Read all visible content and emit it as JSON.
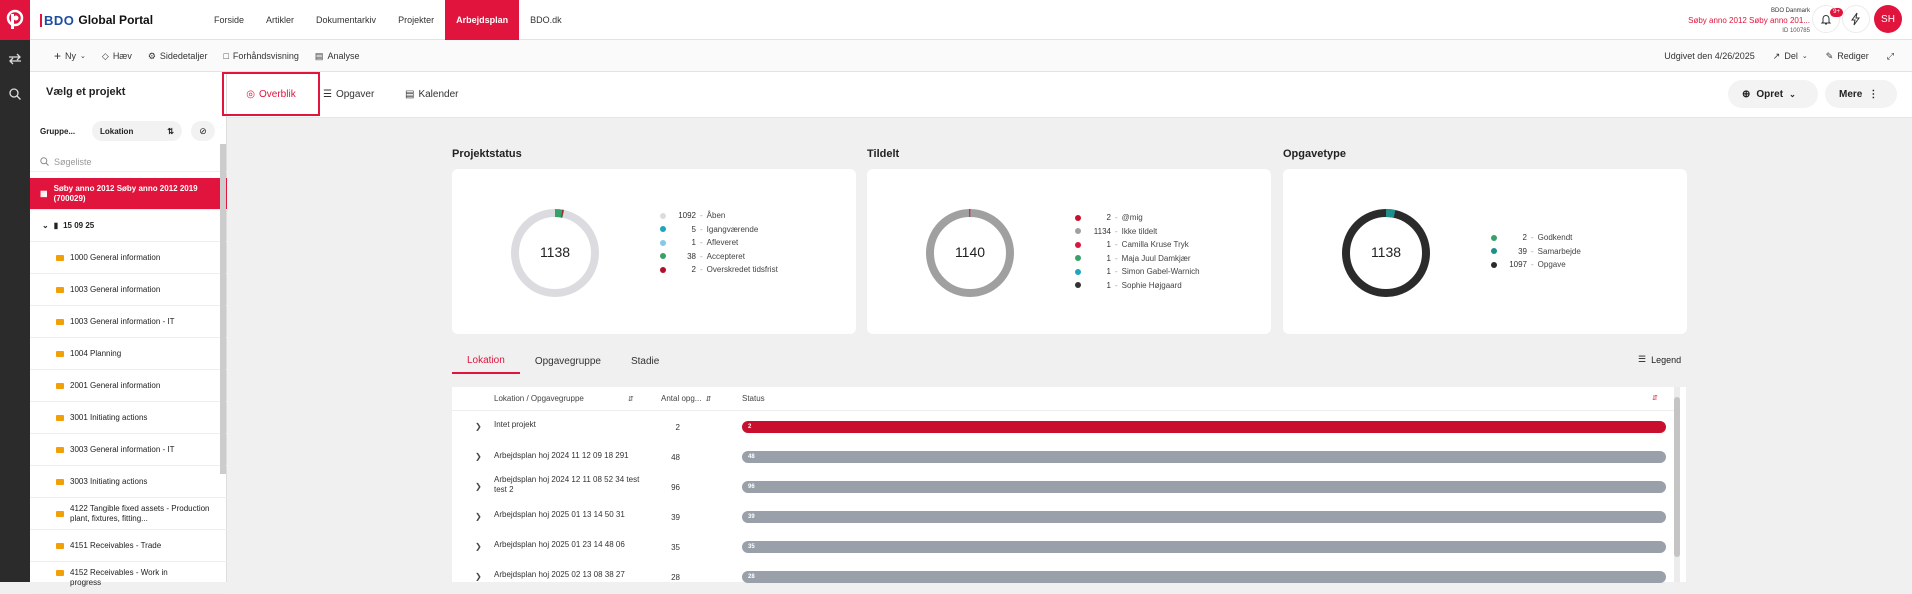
{
  "brand": {
    "logo_text": "BDO",
    "name": "Global Portal"
  },
  "nav": [
    "Forside",
    "Artikler",
    "Dokumentarkiv",
    "Projekter",
    "Arbejdsplan",
    "BDO.dk"
  ],
  "nav_active": "Arbejdsplan",
  "user_info": {
    "org": "BDO Danmark",
    "project": "Søby anno 2012 Søby anno 201...",
    "id": "ID 100785"
  },
  "notifications_badge": "9+",
  "avatar_initials": "SH",
  "cmdbar": {
    "new": "Ny",
    "lift": "Hæv",
    "details": "Sidedetaljer",
    "preview": "Forhåndsvisning",
    "analysis": "Analyse",
    "published": "Udgivet den 4/26/2025",
    "share": "Del",
    "edit": "Rediger"
  },
  "left_panel": {
    "title": "Vælg et projekt",
    "group_label": "Gruppe...",
    "location_label": "Lokation",
    "search_placeholder": "Søgeliste",
    "selected_project": "Søby anno 2012 Søby anno 2012 2019 (700029)",
    "group_node": "15 09 25",
    "items": [
      "1000 General information",
      "1003 General information",
      "1003 General information - IT",
      "1004 Planning",
      "2001 General information",
      "3001 Initiating actions",
      "3003 General information - IT",
      "3003 Initiating actions",
      "4122 Tangible fixed assets - Production plant, fixtures, fitting...",
      "4151 Receivables - Trade",
      "4152 Receivables - Work in progress"
    ]
  },
  "tabs": {
    "overview": "Overblik",
    "tasks": "Opgaver",
    "calendar": "Kalender",
    "create": "Opret",
    "more": "Mere"
  },
  "cards": [
    {
      "title": "Projektstatus",
      "total": "1138",
      "legend": [
        {
          "count": "1092",
          "label": "Åben",
          "color": "#dcdce0"
        },
        {
          "count": "5",
          "label": "Igangværende",
          "color": "#1fa5bf"
        },
        {
          "count": "1",
          "label": "Afleveret",
          "color": "#7fcbe8"
        },
        {
          "count": "38",
          "label": "Accepteret",
          "color": "#3aa06a"
        },
        {
          "count": "2",
          "label": "Overskredet tidsfrist",
          "color": "#b0102a"
        }
      ]
    },
    {
      "title": "Tildelt",
      "total": "1140",
      "legend": [
        {
          "count": "2",
          "label": "@mig",
          "color": "#c8102e"
        },
        {
          "count": "1134",
          "label": "Ikke tildelt",
          "color": "#a0a0a0"
        },
        {
          "count": "1",
          "label": "Camilla Kruse Tryk",
          "color": "#d9163c"
        },
        {
          "count": "1",
          "label": "Maja Juul Damkjær",
          "color": "#3aa06a"
        },
        {
          "count": "1",
          "label": "Simon Gabel-Warnich",
          "color": "#1fa5bf"
        },
        {
          "count": "1",
          "label": "Sophie Højgaard",
          "color": "#333333"
        }
      ]
    },
    {
      "title": "Opgavetype",
      "total": "1138",
      "legend": [
        {
          "count": "2",
          "label": "Godkendt",
          "color": "#3aa06a"
        },
        {
          "count": "39",
          "label": "Samarbejde",
          "color": "#1f8f8a"
        },
        {
          "count": "1097",
          "label": "Opgave",
          "color": "#2b2b2b"
        }
      ]
    }
  ],
  "subtabs": [
    "Lokation",
    "Opgavegruppe",
    "Stadie"
  ],
  "legend_button": "Legend",
  "table": {
    "headers": {
      "location": "Lokation / Opgavegruppe",
      "count": "Antal opg...",
      "status": "Status"
    },
    "rows": [
      {
        "name": "Intet projekt",
        "count": "2",
        "bar_label": "2",
        "red": true
      },
      {
        "name": "Arbejdsplan hoj 2024 11 12 09 18 291",
        "count": "48",
        "bar_label": "48",
        "red": false
      },
      {
        "name": "Arbejdsplan hoj 2024 12 11 08 52 34 test test 2",
        "count": "96",
        "bar_label": "96",
        "red": false
      },
      {
        "name": "Arbejdsplan hoj 2025 01 13 14 50 31",
        "count": "39",
        "bar_label": "39",
        "red": false
      },
      {
        "name": "Arbejdsplan hoj 2025 01 23 14 48 06",
        "count": "35",
        "bar_label": "35",
        "red": false
      },
      {
        "name": "Arbejdsplan hoj 2025 02 13 08 38 27",
        "count": "28",
        "bar_label": "28",
        "red": false
      }
    ]
  }
}
